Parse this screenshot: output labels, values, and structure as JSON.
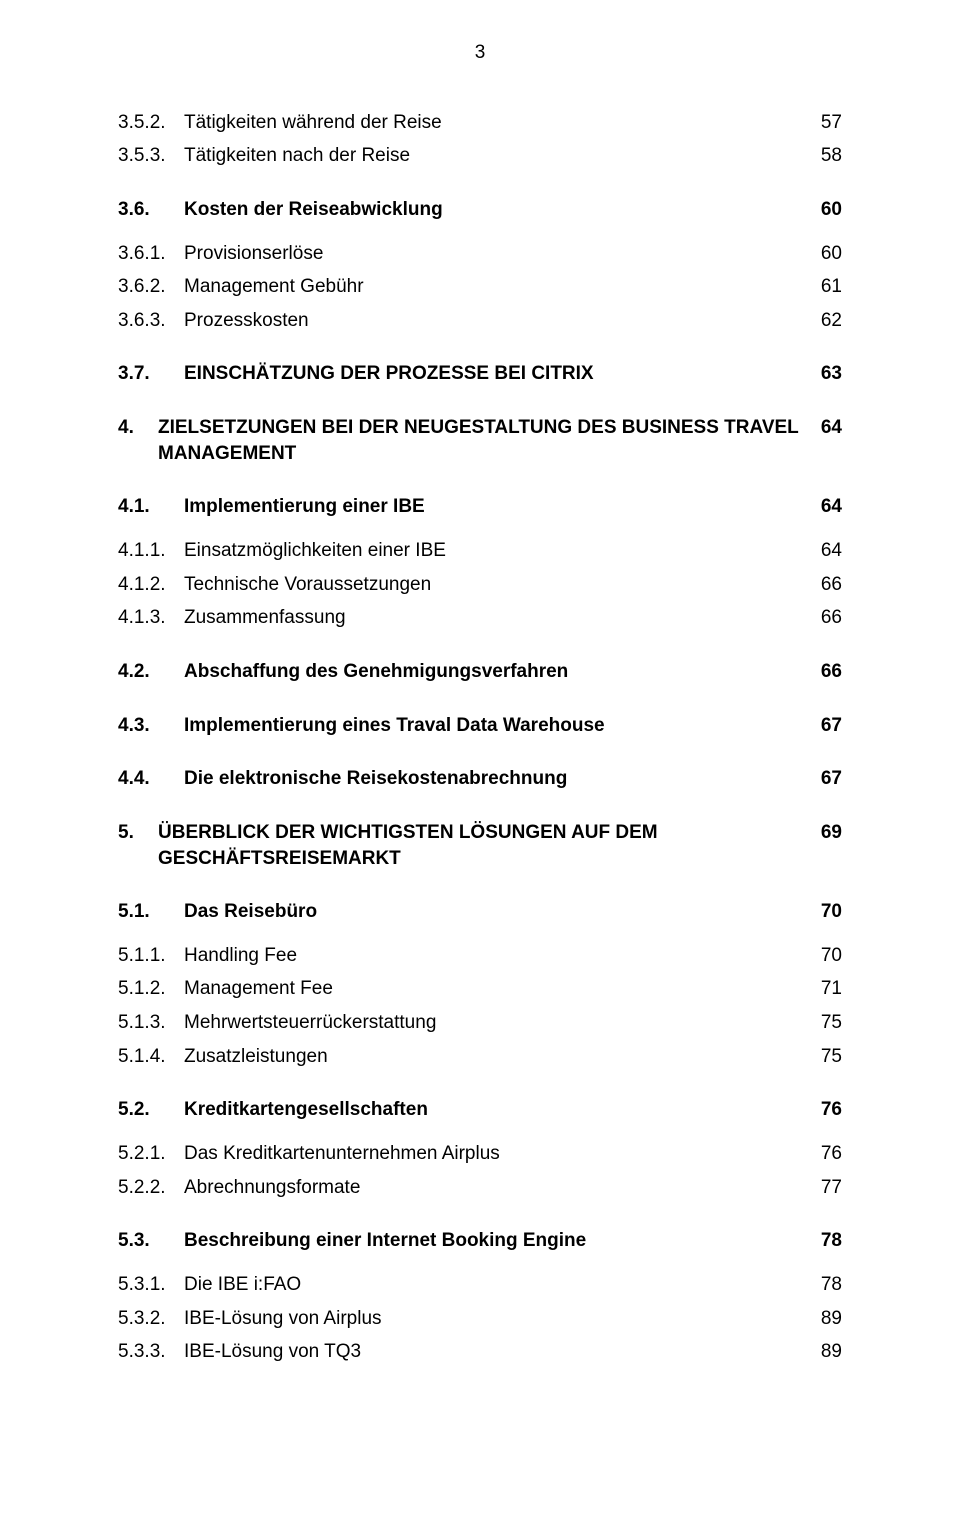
{
  "page": {
    "number": "3"
  },
  "font": {
    "family": "Arial",
    "base_size_pt": 14,
    "bold_weight": 700
  },
  "colors": {
    "text": "#000000",
    "background": "#ffffff"
  },
  "rows": [
    {
      "n": "3.5.2.",
      "t": "Tätigkeiten während der Reise",
      "p": "57",
      "lvl": 3,
      "bold": false,
      "gap": "none"
    },
    {
      "n": "3.5.3.",
      "t": "Tätigkeiten nach der Reise",
      "p": "58",
      "lvl": 3,
      "bold": false,
      "gap": "none"
    },
    {
      "n": "3.6.",
      "t": "Kosten der Reiseabwicklung",
      "p": "60",
      "lvl": 2,
      "bold": true,
      "gap": "top"
    },
    {
      "n": "3.6.1.",
      "t": "Provisionserlöse",
      "p": "60",
      "lvl": 3,
      "bold": false,
      "gap": "sm"
    },
    {
      "n": "3.6.2.",
      "t": "Management Gebühr",
      "p": "61",
      "lvl": 3,
      "bold": false,
      "gap": "none"
    },
    {
      "n": "3.6.3.",
      "t": "Prozesskosten",
      "p": "62",
      "lvl": 3,
      "bold": false,
      "gap": "none"
    },
    {
      "n": "3.7.",
      "t": "EINSCHÄTZUNG DER PROZESSE BEI CITRIX",
      "p": "63",
      "lvl": 2,
      "bold": true,
      "gap": "top"
    },
    {
      "n": "4.",
      "t": "ZIELSETZUNGEN BEI DER NEUGESTALTUNG DES BUSINESS TRAVEL MANAGEMENT",
      "p": "64",
      "lvl": 1,
      "bold": true,
      "gap": "top",
      "hang": true
    },
    {
      "n": "4.1.",
      "t": "Implementierung einer IBE",
      "p": "64",
      "lvl": 2,
      "bold": true,
      "gap": "top"
    },
    {
      "n": "4.1.1.",
      "t": "Einsatzmöglichkeiten einer IBE",
      "p": "64",
      "lvl": 3,
      "bold": false,
      "gap": "sm"
    },
    {
      "n": "4.1.2.",
      "t": "Technische Voraussetzungen",
      "p": "66",
      "lvl": 3,
      "bold": false,
      "gap": "none"
    },
    {
      "n": "4.1.3.",
      "t": "Zusammenfassung",
      "p": "66",
      "lvl": 3,
      "bold": false,
      "gap": "none"
    },
    {
      "n": "4.2.",
      "t": "Abschaffung des Genehmigungsverfahren",
      "p": "66",
      "lvl": 2,
      "bold": true,
      "gap": "top"
    },
    {
      "n": "4.3.",
      "t": "Implementierung eines Traval Data Warehouse",
      "p": "67",
      "lvl": 2,
      "bold": true,
      "gap": "top"
    },
    {
      "n": "4.4.",
      "t": "Die elektronische Reisekostenabrechnung",
      "p": "67",
      "lvl": 2,
      "bold": true,
      "gap": "top"
    },
    {
      "n": "5.",
      "t": "ÜBERBLICK DER WICHTIGSTEN LÖSUNGEN AUF DEM GESCHÄFTSREISEMARKT",
      "p": "69",
      "lvl": 1,
      "bold": true,
      "gap": "top",
      "hang": true
    },
    {
      "n": "5.1.",
      "t": "Das Reisebüro",
      "p": "70",
      "lvl": 2,
      "bold": true,
      "gap": "top"
    },
    {
      "n": "5.1.1.",
      "t": "Handling Fee",
      "p": "70",
      "lvl": 3,
      "bold": false,
      "gap": "sm"
    },
    {
      "n": "5.1.2.",
      "t": "Management Fee",
      "p": "71",
      "lvl": 3,
      "bold": false,
      "gap": "none"
    },
    {
      "n": "5.1.3.",
      "t": "Mehrwertsteuerrückerstattung",
      "p": "75",
      "lvl": 3,
      "bold": false,
      "gap": "none"
    },
    {
      "n": "5.1.4.",
      "t": "Zusatzleistungen",
      "p": "75",
      "lvl": 3,
      "bold": false,
      "gap": "none"
    },
    {
      "n": "5.2.",
      "t": "Kreditkartengesellschaften",
      "p": "76",
      "lvl": 2,
      "bold": true,
      "gap": "top"
    },
    {
      "n": "5.2.1.",
      "t": "Das Kreditkartenunternehmen Airplus",
      "p": "76",
      "lvl": 3,
      "bold": false,
      "gap": "sm"
    },
    {
      "n": "5.2.2.",
      "t": "Abrechnungsformate",
      "p": "77",
      "lvl": 3,
      "bold": false,
      "gap": "none"
    },
    {
      "n": "5.3.",
      "t": "Beschreibung einer Internet Booking Engine",
      "p": "78",
      "lvl": 2,
      "bold": true,
      "gap": "top"
    },
    {
      "n": "5.3.1.",
      "t": "Die IBE i:FAO",
      "p": "78",
      "lvl": 3,
      "bold": false,
      "gap": "sm"
    },
    {
      "n": "5.3.2.",
      "t": "IBE-Lösung von Airplus",
      "p": "89",
      "lvl": 3,
      "bold": false,
      "gap": "none"
    },
    {
      "n": "5.3.3.",
      "t": "IBE-Lösung von TQ3",
      "p": "89",
      "lvl": 3,
      "bold": false,
      "gap": "none"
    }
  ]
}
